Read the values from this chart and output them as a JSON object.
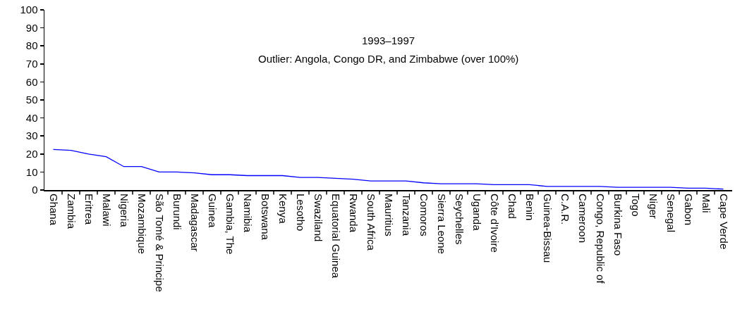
{
  "chart_data": {
    "type": "line",
    "annotations": [
      "1993–1997",
      "Outlier: Angola, Congo DR, and Zimbabwe (over 100%)"
    ],
    "categories": [
      "Ghana",
      "Zambia",
      "Eritrea",
      "Malawi",
      "Nigeria",
      "Mozambique",
      "São Tomé & Principe",
      "Burundi",
      "Madagascar",
      "Guinea",
      "Gambia, The",
      "Namibia",
      "Botswana",
      "Kenya",
      "Lesotho",
      "Swaziland",
      "Equatorial Guinea",
      "Rwanda",
      "South Africa",
      "Mauritius",
      "Tanzania",
      "Comoros",
      "Sierra Leone",
      "Seychelles",
      "Uganda",
      "Côte d'Ivoire",
      "Chad",
      "Benin",
      "Guinea-Bissau",
      "C.A.R.",
      "Cameroon",
      "Congo, Republic of",
      "Burkina Faso",
      "Togo",
      "Niger",
      "Senegal",
      "Gabon",
      "Mali",
      "Cape Verde"
    ],
    "series": [
      {
        "color": "#0000ff",
        "values": [
          22.5,
          22,
          20,
          18.5,
          13,
          13,
          10,
          10,
          9.5,
          8.5,
          8.5,
          8,
          8,
          8,
          7,
          7,
          6.5,
          6,
          5,
          5,
          5,
          4,
          3.5,
          3.5,
          3.5,
          3,
          3,
          3,
          2,
          2,
          2,
          2,
          1.5,
          1.5,
          1.5,
          1.5,
          1,
          1,
          0.5
        ]
      }
    ],
    "ylim": [
      0,
      100
    ],
    "yticks": [
      0,
      10,
      20,
      30,
      40,
      50,
      60,
      70,
      80,
      90,
      100
    ],
    "marker": "none",
    "line_style": "solid"
  }
}
